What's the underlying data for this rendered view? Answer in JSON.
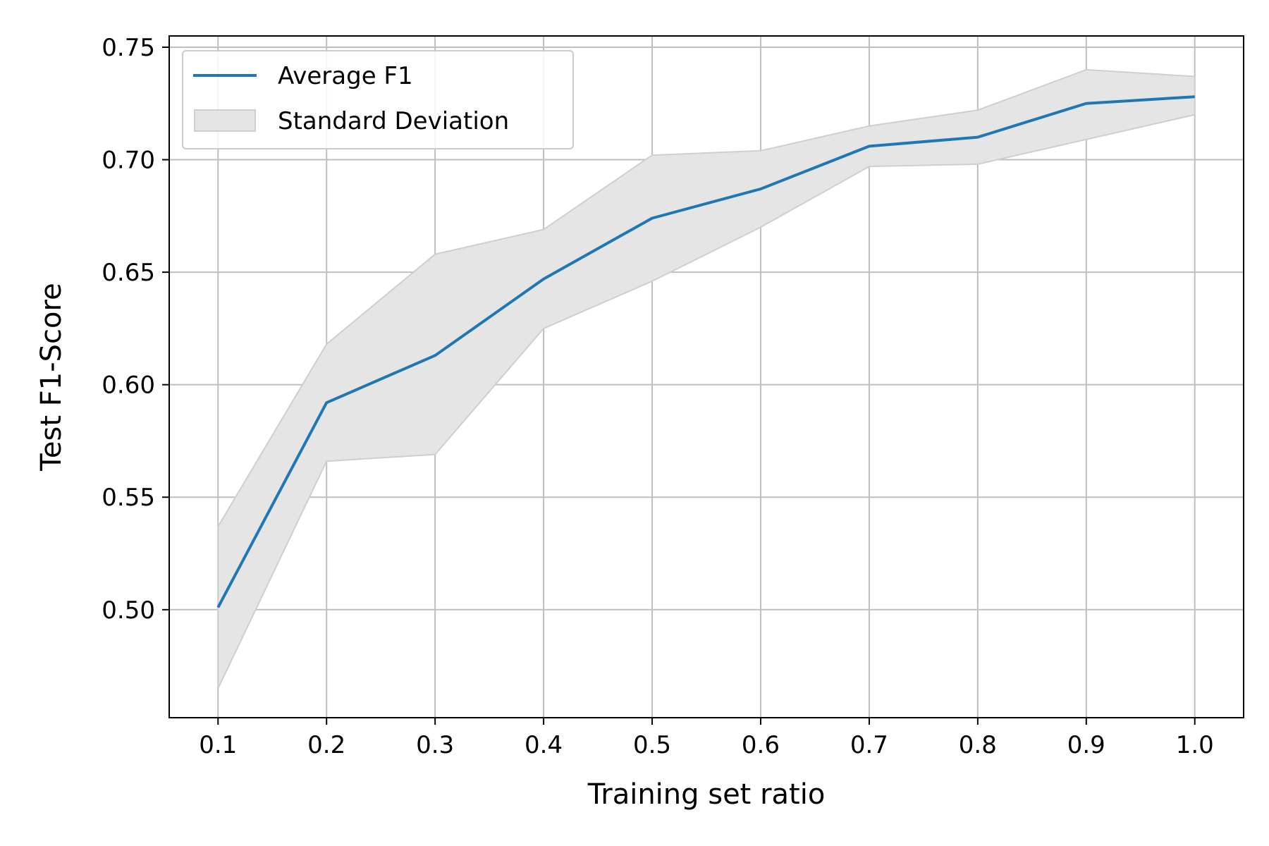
{
  "chart_data": {
    "type": "line",
    "xlabel": "Training set ratio",
    "ylabel": "Test F1-Score",
    "x": [
      0.1,
      0.2,
      0.3,
      0.4,
      0.5,
      0.6,
      0.7,
      0.8,
      0.9,
      1.0
    ],
    "x_ticks": [
      "0.1",
      "0.2",
      "0.3",
      "0.4",
      "0.5",
      "0.6",
      "0.7",
      "0.8",
      "0.9",
      "1.0"
    ],
    "y_ticks": [
      "0.50",
      "0.55",
      "0.60",
      "0.65",
      "0.70",
      "0.75"
    ],
    "xlim": [
      0.055,
      1.045
    ],
    "ylim": [
      0.452,
      0.755
    ],
    "grid": true,
    "legend_position": "top-left",
    "series": [
      {
        "name": "Average F1",
        "values": [
          0.501,
          0.592,
          0.613,
          0.647,
          0.674,
          0.687,
          0.706,
          0.71,
          0.725,
          0.728
        ],
        "color": "#1f77b4"
      }
    ],
    "band": {
      "name": "Standard Deviation",
      "upper": [
        0.537,
        0.618,
        0.658,
        0.669,
        0.702,
        0.704,
        0.715,
        0.722,
        0.74,
        0.737
      ],
      "lower": [
        0.465,
        0.566,
        0.569,
        0.625,
        0.646,
        0.67,
        0.697,
        0.698,
        0.709,
        0.72
      ],
      "color": "#e5e5e5"
    }
  }
}
